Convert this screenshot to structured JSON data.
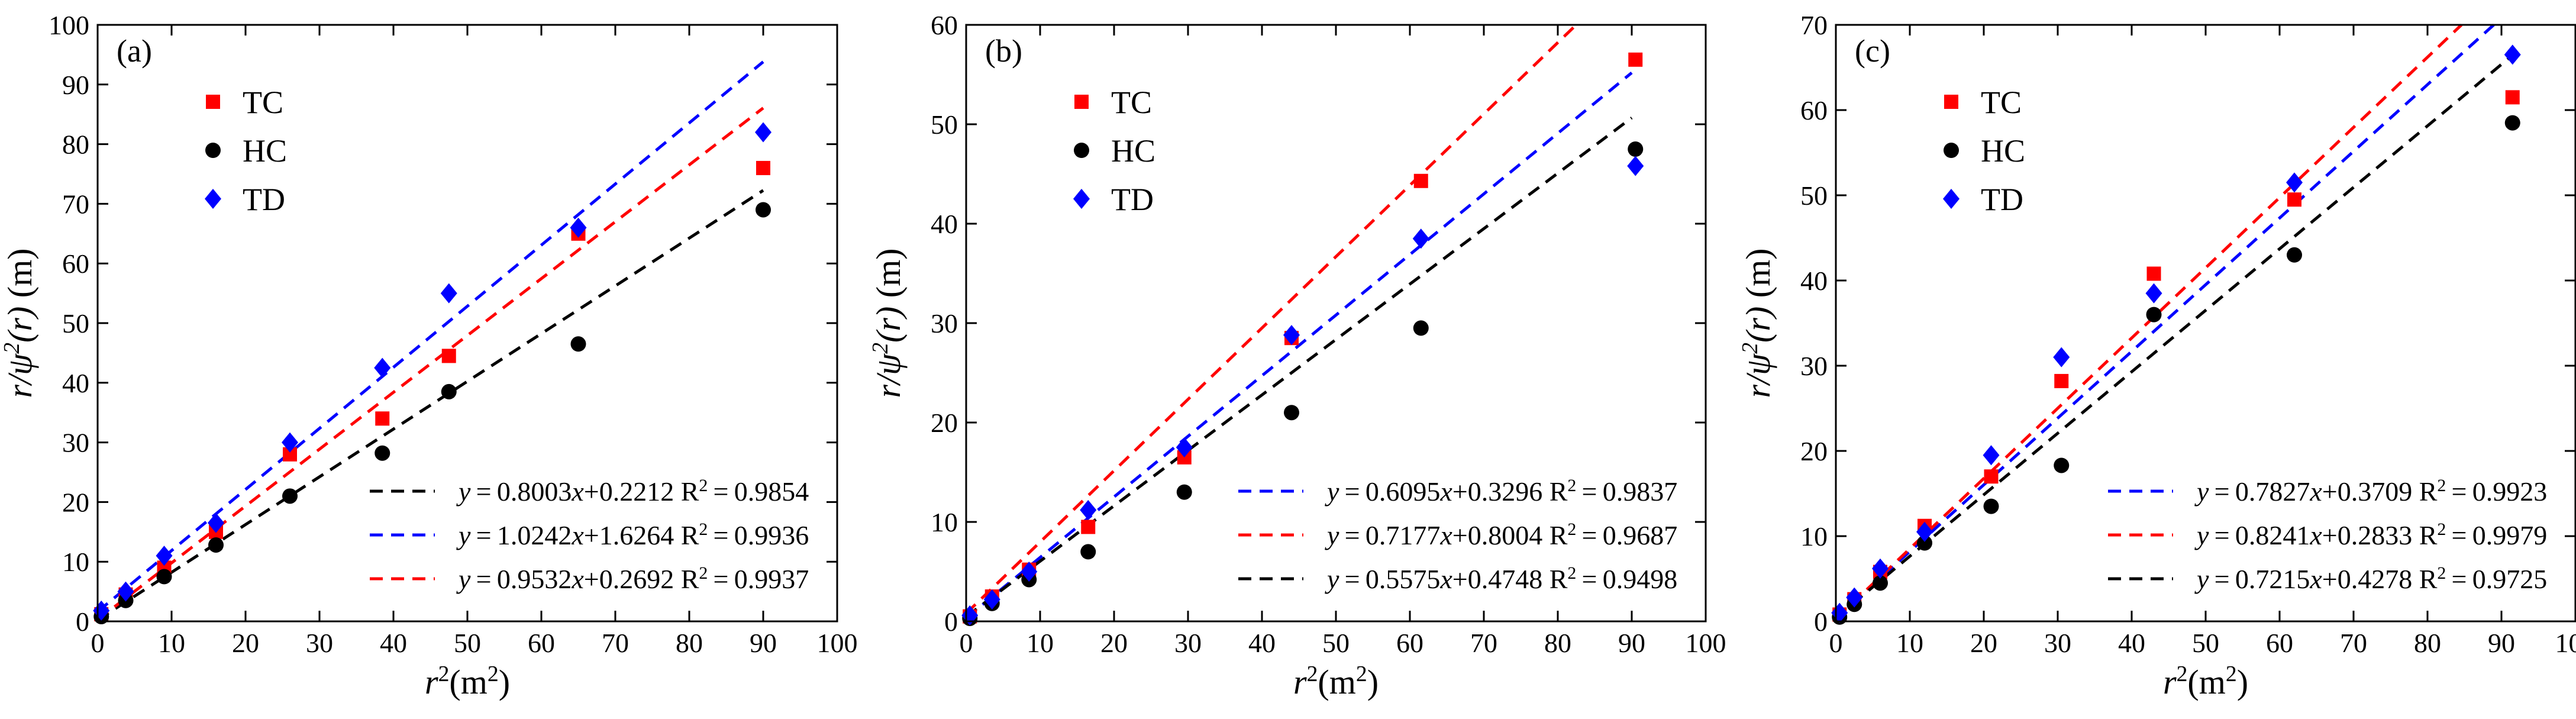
{
  "chart_data": [
    {
      "panel_label": "(a)",
      "type": "scatter",
      "title": "",
      "xlabel": "r²(m²)",
      "ylabel": "r/ψ²(r) (m)",
      "xlim": [
        0,
        100
      ],
      "ylim": [
        0,
        100
      ],
      "x_ticks": [
        0,
        10,
        20,
        30,
        40,
        50,
        60,
        70,
        80,
        90,
        100
      ],
      "y_ticks": [
        0,
        10,
        20,
        30,
        40,
        50,
        60,
        70,
        80,
        90,
        100
      ],
      "grid": false,
      "legend_position": "top-left",
      "series": [
        {
          "name": "TC",
          "marker": "square",
          "color": "#ff0000",
          "x": [
            0.5,
            3.8,
            9,
            16,
            26,
            38.5,
            47.5,
            65,
            90
          ],
          "y": [
            1.2,
            4.5,
            9,
            15,
            28,
            34,
            44.5,
            65,
            76
          ]
        },
        {
          "name": "HC",
          "marker": "circle",
          "color": "#000000",
          "x": [
            0.5,
            3.8,
            9,
            16,
            26,
            38.5,
            47.5,
            65,
            90
          ],
          "y": [
            0.8,
            3.5,
            7.5,
            12.8,
            21,
            28.2,
            38.5,
            46.5,
            69
          ]
        },
        {
          "name": "TD",
          "marker": "diamond",
          "color": "#0000ff",
          "x": [
            0.5,
            3.8,
            9,
            16,
            26,
            38.5,
            47.5,
            65,
            90
          ],
          "y": [
            1.8,
            5,
            11,
            16.5,
            30,
            42.5,
            55,
            66,
            82
          ]
        }
      ],
      "fits": [
        {
          "color": "#000000",
          "slope": 0.8003,
          "intercept": 0.2212,
          "x_range": [
            0,
            90
          ],
          "equation": "y = 0.8003x+0.2212",
          "r2_label": "R² = 0.9854"
        },
        {
          "color": "#0000ff",
          "slope": 1.0242,
          "intercept": 1.6264,
          "x_range": [
            0,
            90
          ],
          "equation": "y = 1.0242x+1.6264",
          "r2_label": "R² = 0.9936"
        },
        {
          "color": "#ff0000",
          "slope": 0.9532,
          "intercept": 0.2692,
          "x_range": [
            0,
            90
          ],
          "equation": "y = 0.9532x+0.2692",
          "r2_label": "R² = 0.9937"
        }
      ]
    },
    {
      "panel_label": "(b)",
      "type": "scatter",
      "title": "",
      "xlabel": "r²(m²)",
      "ylabel": "r/ψ²(r) (m)",
      "xlim": [
        0,
        100
      ],
      "ylim": [
        0,
        60
      ],
      "x_ticks": [
        0,
        10,
        20,
        30,
        40,
        50,
        60,
        70,
        80,
        90,
        100
      ],
      "y_ticks": [
        0,
        10,
        20,
        30,
        40,
        50,
        60
      ],
      "grid": false,
      "legend_position": "top-left",
      "series": [
        {
          "name": "TC",
          "marker": "square",
          "color": "#ff0000",
          "x": [
            0.5,
            3.5,
            8.5,
            16.5,
            29.5,
            44,
            61.5,
            90.5
          ],
          "y": [
            0.5,
            2.5,
            5.2,
            9.5,
            16.5,
            28.5,
            44.3,
            56.5
          ]
        },
        {
          "name": "HC",
          "marker": "circle",
          "color": "#000000",
          "x": [
            0.5,
            3.5,
            8.5,
            16.5,
            29.5,
            44,
            61.5,
            90.5
          ],
          "y": [
            0.3,
            1.8,
            4.2,
            7,
            13,
            21,
            29.5,
            47.5
          ]
        },
        {
          "name": "TD",
          "marker": "diamond",
          "color": "#0000ff",
          "x": [
            0.5,
            3.5,
            8.5,
            16.5,
            29.5,
            44,
            61.5,
            90.5
          ],
          "y": [
            0.6,
            2.2,
            5,
            11.2,
            17.5,
            28.8,
            38.5,
            45.8
          ]
        }
      ],
      "fits": [
        {
          "color": "#0000ff",
          "slope": 0.6095,
          "intercept": 0.3296,
          "x_range": [
            0,
            90
          ],
          "equation": "y = 0.6095x+0.3296",
          "r2_label": "R² = 0.9837"
        },
        {
          "color": "#ff0000",
          "slope": 0.7177,
          "intercept": 0.8004,
          "x_range": [
            0,
            90
          ],
          "equation": "y = 0.7177x+0.8004",
          "r2_label": "R² = 0.9687"
        },
        {
          "color": "#000000",
          "slope": 0.5575,
          "intercept": 0.4748,
          "x_range": [
            0,
            90
          ],
          "equation": "y = 0.5575x+0.4748",
          "r2_label": "R² = 0.9498"
        }
      ]
    },
    {
      "panel_label": "(c)",
      "type": "scatter",
      "title": "",
      "xlabel": "r²(m²)",
      "ylabel": "r/ψ²(r) (m)",
      "xlim": [
        0,
        100
      ],
      "ylim": [
        0,
        70
      ],
      "x_ticks": [
        0,
        10,
        20,
        30,
        40,
        50,
        60,
        70,
        80,
        90,
        100
      ],
      "y_ticks": [
        0,
        10,
        20,
        30,
        40,
        50,
        60,
        70
      ],
      "grid": false,
      "legend_position": "top-left",
      "series": [
        {
          "name": "TC",
          "marker": "square",
          "color": "#ff0000",
          "x": [
            0.5,
            2.5,
            6,
            12,
            21,
            30.5,
            43,
            62,
            91.5
          ],
          "y": [
            0.8,
            2.6,
            5.8,
            11.2,
            17,
            28.2,
            40.8,
            49.5,
            61.5
          ]
        },
        {
          "name": "HC",
          "marker": "circle",
          "color": "#000000",
          "x": [
            0.5,
            2.5,
            6,
            12,
            21,
            30.5,
            43,
            62,
            91.5
          ],
          "y": [
            0.5,
            2,
            4.5,
            9.2,
            13.5,
            18.3,
            36,
            43,
            58.5
          ]
        },
        {
          "name": "TD",
          "marker": "diamond",
          "color": "#0000ff",
          "x": [
            0.5,
            2.5,
            6,
            12,
            21,
            30.5,
            43,
            62,
            91.5
          ],
          "y": [
            1,
            2.8,
            6.2,
            10.5,
            19.5,
            31,
            38.5,
            51.5,
            66.5
          ]
        }
      ],
      "fits": [
        {
          "color": "#0000ff",
          "slope": 0.7827,
          "intercept": 0.3709,
          "x_range": [
            0,
            92
          ],
          "equation": "y = 0.7827x+0.3709",
          "r2_label": "R² = 0.9923"
        },
        {
          "color": "#ff0000",
          "slope": 0.8241,
          "intercept": 0.2833,
          "x_range": [
            0,
            92
          ],
          "equation": "y = 0.8241x+0.2833",
          "r2_label": "R² = 0.9979"
        },
        {
          "color": "#000000",
          "slope": 0.7215,
          "intercept": 0.4278,
          "x_range": [
            0,
            92
          ],
          "equation": "y = 0.7215x+0.4278",
          "r2_label": "R² = 0.9725"
        }
      ]
    }
  ]
}
